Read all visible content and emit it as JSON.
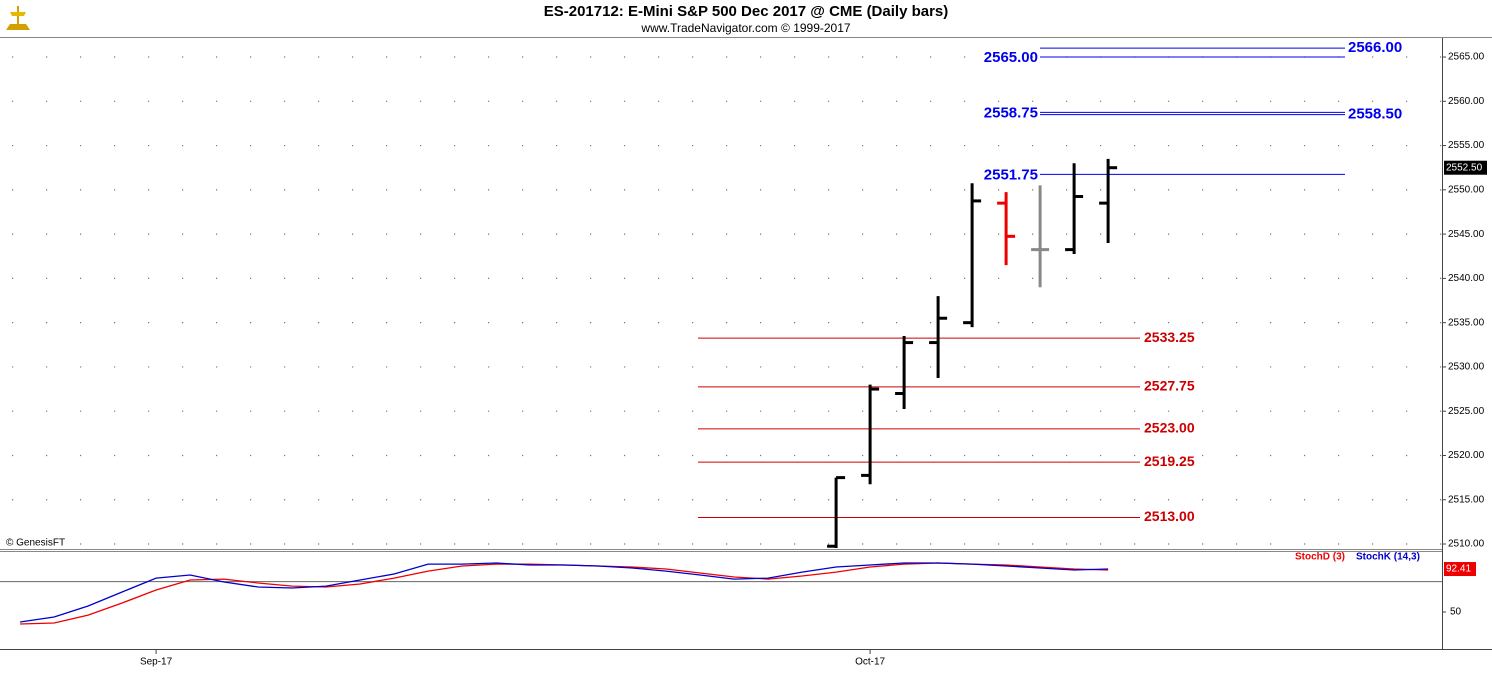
{
  "chart_data": {
    "type": "ohlc",
    "title": "ES-201712:  E-Mini S&P 500 Dec 2017 @ CME  (Daily bars)",
    "subtitle": "www.TradeNavigator.com © 1999-2017",
    "watermark": "© GenesisFT",
    "categories": [
      null,
      null,
      null,
      null,
      "Sep-17",
      null,
      null,
      null,
      null,
      null,
      null,
      null,
      null,
      null,
      null,
      null,
      null,
      null,
      null,
      null,
      null,
      null,
      null,
      null,
      null,
      "Oct-17",
      null,
      null,
      null,
      null,
      null,
      null,
      null
    ],
    "xlim": [
      -0.59,
      41.82
    ],
    "ylim": [
      2509.55,
      2567.15
    ],
    "yticks": [
      {
        "value": 2510,
        "label": "2510.00"
      },
      {
        "value": 2515,
        "label": "2515.00"
      },
      {
        "value": 2520,
        "label": "2520.00"
      },
      {
        "value": 2525,
        "label": "2525.00"
      },
      {
        "value": 2530,
        "label": "2530.00"
      },
      {
        "value": 2535,
        "label": "2535.00"
      },
      {
        "value": 2540,
        "label": "2540.00"
      },
      {
        "value": 2545,
        "label": "2545.00"
      },
      {
        "value": 2550,
        "label": "2550.00"
      },
      {
        "value": 2555,
        "label": "2555.00"
      },
      {
        "value": 2560,
        "label": "2560.00"
      },
      {
        "value": 2565,
        "label": "2565.00"
      }
    ],
    "grid": true,
    "bars": {
      "x": [
        24,
        25,
        26,
        27,
        28,
        29,
        30,
        31,
        32
      ],
      "open": [
        2509.75,
        2517.75,
        2527,
        2532.75,
        2535,
        2548.5,
        2543.25,
        2543.25,
        2548.5
      ],
      "high": [
        2517.5,
        2528,
        2533.5,
        2538,
        2550.75,
        2549.75,
        2550.5,
        2553,
        2553.5
      ],
      "low": [
        2509.5,
        2516.75,
        2525.25,
        2528.75,
        2534.5,
        2541.5,
        2539,
        2542.75,
        2544
      ],
      "close": [
        2517.5,
        2527.5,
        2532.75,
        2535.5,
        2548.75,
        2544.75,
        2543.25,
        2549.25,
        2552.5
      ],
      "colors": [
        "#000000",
        "#000000",
        "#000000",
        "#000000",
        "#000000",
        "#ee0000",
        "#888888",
        "#000000",
        "#000000"
      ]
    },
    "last_price": {
      "value": 2552.5,
      "label": "2552.50"
    },
    "support_levels": [
      {
        "value": 2533.25,
        "label": "2533.25",
        "color": "#cc0000"
      },
      {
        "value": 2527.75,
        "label": "2527.75",
        "color": "#cc0000"
      },
      {
        "value": 2523,
        "label": "2523.00",
        "color": "#cc0000"
      },
      {
        "value": 2519.25,
        "label": "2519.25",
        "color": "#cc0000"
      },
      {
        "value": 2513,
        "label": "2513.00",
        "color": "#cc0000"
      }
    ],
    "resistance_levels": [
      {
        "value": 2551.75,
        "label": "2551.75",
        "color": "#0000ee",
        "label_side": "left"
      },
      {
        "value": 2558.75,
        "label": "2558.75",
        "color": "#0000ee",
        "label_side": "left"
      },
      {
        "value": 2558.5,
        "label": "2558.50",
        "color": "#0000ee",
        "label_side": "right"
      },
      {
        "value": 2565,
        "label": "2565.00",
        "color": "#0000ee",
        "label_side": "left"
      },
      {
        "value": 2566,
        "label": "2566.00",
        "color": "#0000ee",
        "label_side": "right"
      }
    ],
    "indicator": {
      "type": "line",
      "ylim": [
        14.5,
        109.2
      ],
      "yticks": [
        50
      ],
      "reference_line": 80,
      "last_value": {
        "value": 92.41,
        "label": "92.41"
      },
      "series": [
        {
          "name": "StochD (3)",
          "color": "#ee0000",
          "values": [
            38.2,
            39.2,
            47.0,
            58.9,
            71.7,
            81.6,
            82.5,
            78.6,
            75.6,
            74.7,
            77.6,
            83.5,
            90.4,
            95.4,
            97.3,
            97.3,
            96.4,
            95.4,
            94.4,
            92.4,
            88.5,
            84.5,
            82.5,
            85.5,
            89.4,
            94.4,
            97.3,
            98.3,
            97.3,
            96.4,
            94.4,
            92.4,
            91.4
          ]
        },
        {
          "name": "StochK (14,3)",
          "color": "#0000cc",
          "values": [
            40.1,
            45.1,
            55.9,
            69.7,
            83.5,
            86.5,
            79.6,
            74.7,
            73.7,
            75.6,
            81.6,
            87.5,
            97.3,
            97.3,
            98.3,
            96.4,
            96.4,
            95.4,
            93.4,
            90.4,
            86.5,
            82.5,
            83.5,
            89.4,
            94.4,
            96.4,
            98.3,
            98.3,
            97.3,
            95.4,
            93.4,
            91.4,
            92.4
          ]
        }
      ]
    }
  }
}
